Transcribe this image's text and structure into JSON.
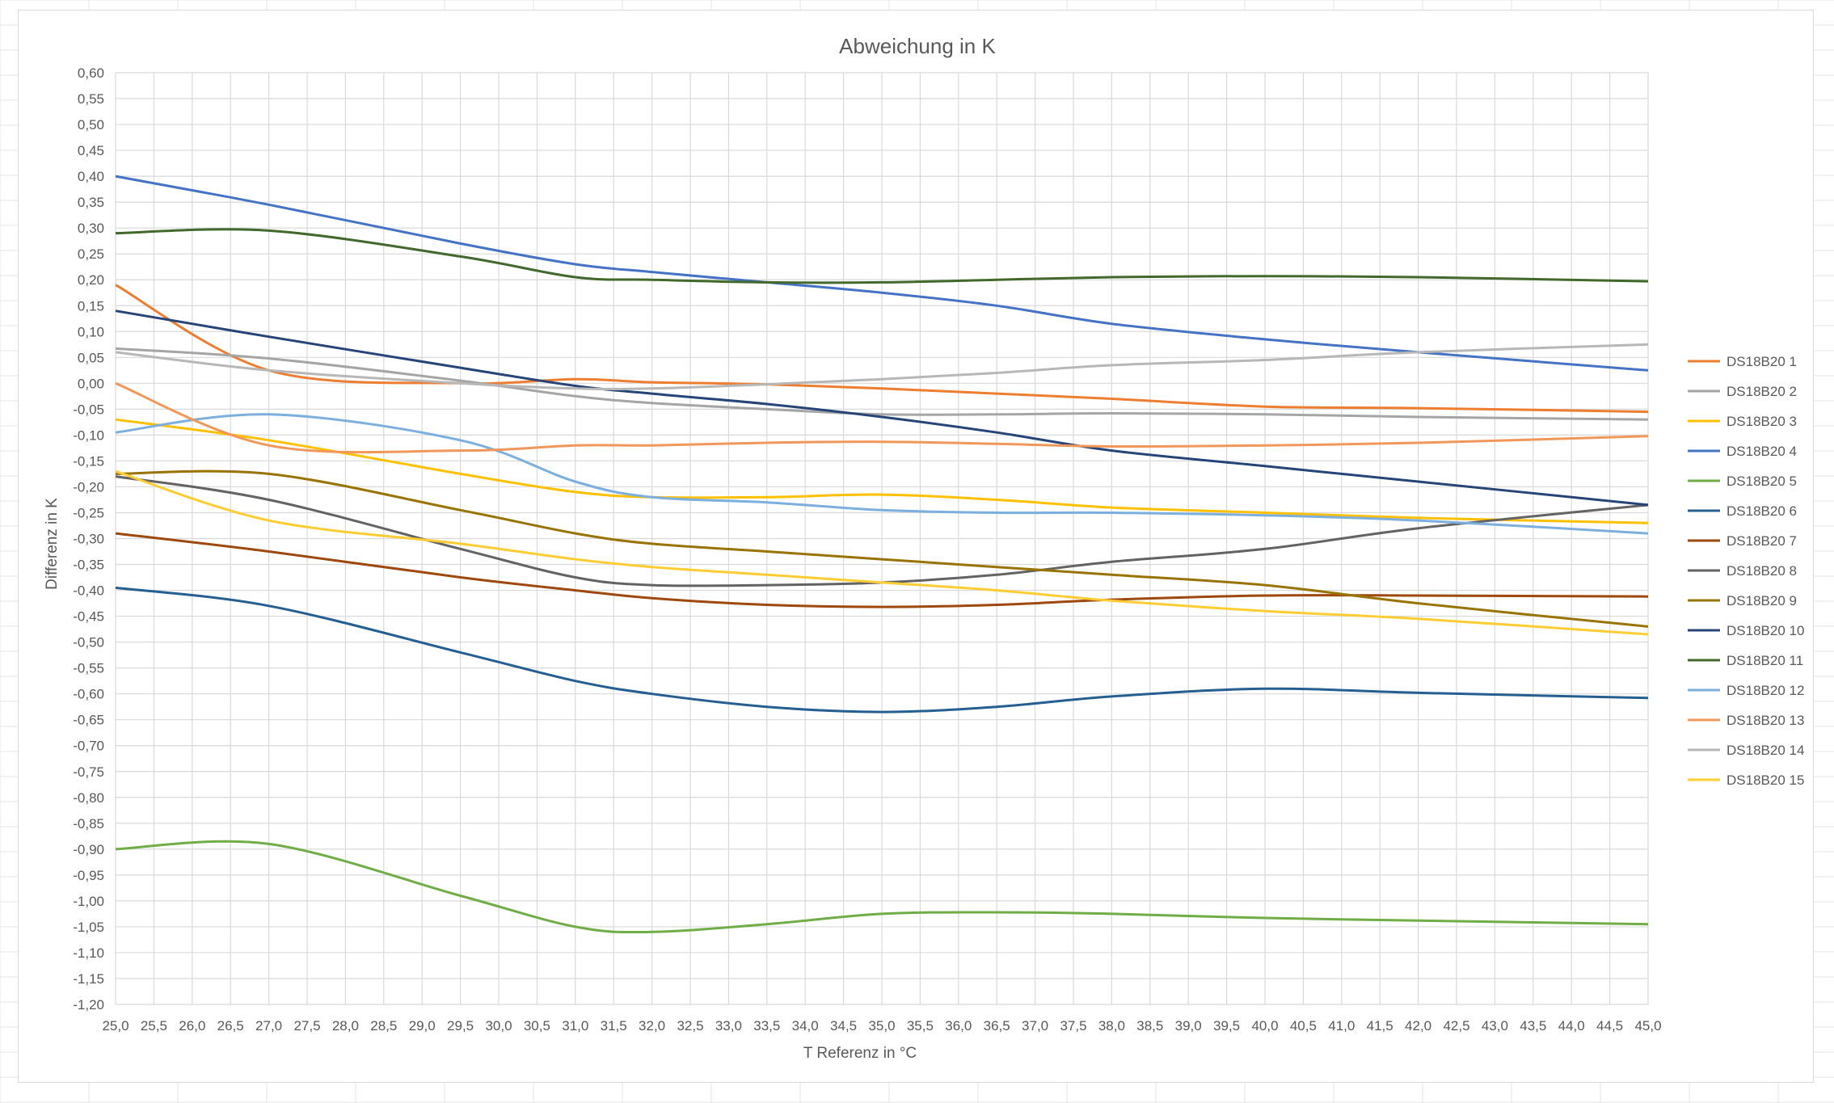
{
  "chart_data": {
    "type": "line",
    "title": "Abweichung in K",
    "xlabel": "T Referenz in °C",
    "ylabel": "Differenz in K",
    "xlim": [
      25.0,
      45.0
    ],
    "ylim": [
      -1.2,
      0.6
    ],
    "x_tick_labels": [
      "25,0",
      "25,5",
      "26,0",
      "26,5",
      "27,0",
      "27,5",
      "28,0",
      "28,5",
      "29,0",
      "29,5",
      "30,0",
      "30,5",
      "31,0",
      "31,5",
      "32,0",
      "32,5",
      "33,0",
      "33,5",
      "34,0",
      "34,5",
      "35,0",
      "35,5",
      "36,0",
      "36,5",
      "37,0",
      "37,5",
      "38,0",
      "38,5",
      "39,0",
      "39,5",
      "40,0",
      "40,5",
      "41,0",
      "41,5",
      "42,0",
      "42,5",
      "43,0",
      "43,5",
      "44,0",
      "44,5",
      "45,0"
    ],
    "y_tick_labels": [
      "0,60",
      "0,55",
      "0,50",
      "0,45",
      "0,40",
      "0,35",
      "0,30",
      "0,25",
      "0,20",
      "0,15",
      "0,10",
      "0,05",
      "0,00",
      "-0,05",
      "-0,10",
      "-0,15",
      "-0,20",
      "-0,25",
      "-0,30",
      "-0,35",
      "-0,40",
      "-0,45",
      "-0,50",
      "-0,55",
      "-0,60",
      "-0,65",
      "-0,70",
      "-0,75",
      "-0,80",
      "-0,85",
      "-0,90",
      "-0,95",
      "-1,00",
      "-1,05",
      "-1,10",
      "-1,15",
      "-1,20"
    ],
    "grid": true,
    "legend_position": "right",
    "x": [
      25.0,
      27.0,
      29.5,
      31.0,
      32.0,
      33.5,
      35.0,
      36.5,
      38.0,
      40.0,
      42.0,
      45.0
    ],
    "series": [
      {
        "name": "DS18B20 1",
        "color": "#ED7D31",
        "values": [
          0.19,
          0.025,
          0.0,
          0.008,
          0.002,
          -0.002,
          -0.01,
          -0.02,
          -0.03,
          -0.045,
          -0.048,
          -0.055
        ]
      },
      {
        "name": "DS18B20 2",
        "color": "#A5A5A5",
        "values": [
          0.067,
          0.048,
          0.005,
          -0.025,
          -0.038,
          -0.05,
          -0.06,
          -0.06,
          -0.058,
          -0.06,
          -0.065,
          -0.07
        ]
      },
      {
        "name": "DS18B20 3",
        "color": "#FFC000",
        "values": [
          -0.07,
          -0.11,
          -0.175,
          -0.21,
          -0.22,
          -0.22,
          -0.215,
          -0.225,
          -0.24,
          -0.25,
          -0.26,
          -0.27
        ]
      },
      {
        "name": "DS18B20 4",
        "color": "#4472C4",
        "values": [
          0.4,
          0.345,
          0.27,
          0.23,
          0.215,
          0.195,
          0.175,
          0.15,
          0.115,
          0.085,
          0.06,
          0.025
        ]
      },
      {
        "name": "DS18B20 5",
        "color": "#70AD47",
        "values": [
          -0.9,
          -0.89,
          -0.99,
          -1.05,
          -1.06,
          -1.045,
          -1.025,
          -1.022,
          -1.025,
          -1.033,
          -1.038,
          -1.045
        ]
      },
      {
        "name": "DS18B20 6",
        "color": "#255E91",
        "values": [
          -0.395,
          -0.43,
          -0.52,
          -0.575,
          -0.6,
          -0.625,
          -0.635,
          -0.625,
          -0.605,
          -0.59,
          -0.598,
          -0.608
        ]
      },
      {
        "name": "DS18B20 7",
        "color": "#9E480E",
        "values": [
          -0.29,
          -0.325,
          -0.375,
          -0.4,
          -0.415,
          -0.428,
          -0.432,
          -0.428,
          -0.418,
          -0.41,
          -0.41,
          -0.412
        ]
      },
      {
        "name": "DS18B20 8",
        "color": "#636363",
        "values": [
          -0.18,
          -0.225,
          -0.32,
          -0.375,
          -0.39,
          -0.39,
          -0.385,
          -0.37,
          -0.345,
          -0.32,
          -0.28,
          -0.235
        ]
      },
      {
        "name": "DS18B20 9",
        "color": "#997300",
        "values": [
          -0.175,
          -0.175,
          -0.245,
          -0.29,
          -0.31,
          -0.325,
          -0.34,
          -0.355,
          -0.37,
          -0.39,
          -0.425,
          -0.47
        ]
      },
      {
        "name": "DS18B20 10",
        "color": "#264478",
        "values": [
          0.14,
          0.09,
          0.03,
          -0.005,
          -0.02,
          -0.04,
          -0.065,
          -0.095,
          -0.13,
          -0.16,
          -0.19,
          -0.235
        ]
      },
      {
        "name": "DS18B20 11",
        "color": "#43682B",
        "values": [
          0.29,
          0.295,
          0.245,
          0.205,
          0.2,
          0.195,
          0.195,
          0.2,
          0.205,
          0.207,
          0.205,
          0.197
        ]
      },
      {
        "name": "DS18B20 12",
        "color": "#7CAFDD",
        "values": [
          -0.095,
          -0.06,
          -0.11,
          -0.19,
          -0.22,
          -0.23,
          -0.245,
          -0.25,
          -0.25,
          -0.255,
          -0.265,
          -0.29
        ]
      },
      {
        "name": "DS18B20 13",
        "color": "#F1975A",
        "values": [
          0.0,
          -0.12,
          -0.13,
          -0.12,
          -0.12,
          -0.115,
          -0.113,
          -0.117,
          -0.122,
          -0.12,
          -0.115,
          -0.102
        ]
      },
      {
        "name": "DS18B20 14",
        "color": "#B7B7B7",
        "values": [
          0.06,
          0.025,
          0.0,
          -0.01,
          -0.01,
          -0.002,
          0.008,
          0.02,
          0.035,
          0.045,
          0.06,
          0.075
        ]
      },
      {
        "name": "DS18B20 15",
        "color": "#FFCD33",
        "values": [
          -0.17,
          -0.265,
          -0.31,
          -0.34,
          -0.355,
          -0.37,
          -0.385,
          -0.4,
          -0.42,
          -0.44,
          -0.455,
          -0.485
        ]
      }
    ]
  }
}
